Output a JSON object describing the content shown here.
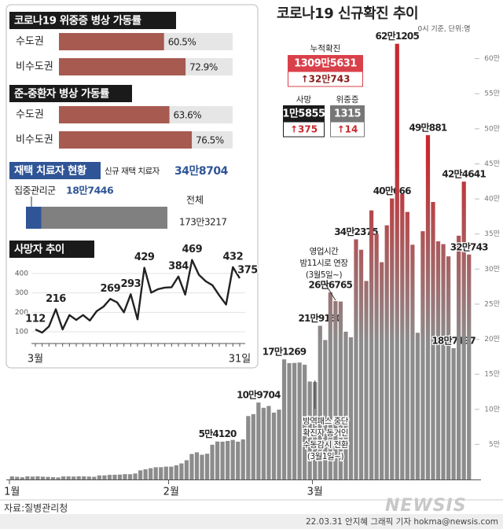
{
  "chart_data": [
    {
      "type": "bar",
      "title": "코로나19 신규확진 추이",
      "subtitle": "0시 기준, 단위:명",
      "categories": [
        "1월",
        null,
        null,
        null,
        null,
        null,
        null,
        null,
        null,
        null,
        null,
        null,
        null,
        null,
        null,
        null,
        null,
        null,
        null,
        null,
        null,
        null,
        null,
        null,
        null,
        null,
        null,
        null,
        null,
        null,
        null,
        "2월",
        null,
        null,
        null,
        null,
        null,
        null,
        null,
        null,
        null,
        null,
        null,
        null,
        null,
        null,
        null,
        null,
        null,
        null,
        null,
        null,
        null,
        null,
        null,
        null,
        null,
        null,
        null,
        "3월",
        null,
        null,
        null,
        null,
        null,
        null,
        null,
        null,
        null,
        null,
        null,
        null,
        null,
        null,
        null,
        null,
        null,
        null,
        null,
        null,
        null,
        null,
        null,
        null,
        null,
        null,
        null,
        null,
        null,
        null
      ],
      "values": [
        4415,
        3833,
        3126,
        4443,
        4126,
        4444,
        4054,
        3717,
        3373,
        3005,
        4385,
        4387,
        4167,
        4539,
        4419,
        4193,
        3857,
        5804,
        5805,
        6603,
        6769,
        7009,
        7630,
        7513,
        8571,
        13012,
        14518,
        16096,
        17513,
        17532,
        18340,
        18342,
        20270,
        22907,
        27443,
        36362,
        38691,
        35286,
        36717,
        49567,
        54120,
        53926,
        54941,
        56431,
        53926,
        57177,
        90443,
        93135,
        109704,
        102211,
        104829,
        95362,
        99573,
        171269,
        165889,
        166209,
        166722,
        163566,
        139626,
        138993,
        219160,
        198803,
        266765,
        254327,
        253698,
        210716,
        202721,
        342375,
        327549,
        282987,
        383665,
        350190,
        309790,
        362338,
        400666,
        621205,
        407017,
        381454,
        334708,
        209169,
        353980,
        490881,
        395598,
        339514,
        335580,
        318130,
        187197,
        347554,
        424641,
        320743
      ],
      "value_labels": [
        null,
        null,
        null,
        null,
        null,
        null,
        null,
        null,
        null,
        null,
        null,
        null,
        null,
        null,
        null,
        null,
        null,
        null,
        null,
        null,
        null,
        null,
        null,
        null,
        null,
        null,
        null,
        null,
        null,
        null,
        null,
        null,
        null,
        null,
        null,
        null,
        null,
        null,
        null,
        null,
        "5만4120",
        null,
        null,
        null,
        null,
        null,
        null,
        null,
        "10만9704",
        null,
        null,
        null,
        null,
        "17만1269",
        null,
        null,
        null,
        null,
        null,
        null,
        "21만9160",
        null,
        "26만6765",
        null,
        null,
        null,
        null,
        "34만2375",
        null,
        null,
        null,
        null,
        null,
        null,
        "40만666",
        "62만1205",
        null,
        null,
        null,
        null,
        null,
        "49만881",
        null,
        null,
        null,
        null,
        "18만7197",
        null,
        "42만4641",
        "32만743"
      ],
      "color": "#c8282d",
      "base_color": "#8c8c8c",
      "ylim": [
        0,
        650000
      ],
      "yticks": [
        {
          "value": 50000,
          "label": "5만"
        },
        {
          "value": 100000,
          "label": "10만"
        },
        {
          "value": 150000,
          "label": "15만"
        },
        {
          "value": 200000,
          "label": "20만"
        },
        {
          "value": 250000,
          "label": "25만"
        },
        {
          "value": 300000,
          "label": "30만"
        },
        {
          "value": 350000,
          "label": "35만"
        },
        {
          "value": 400000,
          "label": "40만"
        },
        {
          "value": 450000,
          "label": "45만"
        },
        {
          "value": 500000,
          "label": "50만"
        },
        {
          "value": 550000,
          "label": "55만"
        },
        {
          "value": 600000,
          "label": "60만"
        }
      ],
      "annotations": [
        {
          "lines": [
            "영업시간",
            "밤11시로 연장",
            "(3월5일~)"
          ]
        },
        {
          "lines": [
            "방역패스 중단",
            "확진자 동거인",
            "수동감시 전환",
            "(3월1일~)"
          ]
        }
      ]
    },
    {
      "type": "hbar",
      "title": "코로나19 위중증 병상 가동률",
      "categories": [
        "수도권",
        "비수도권"
      ],
      "values": [
        60.5,
        72.9
      ],
      "value_labels": [
        "60.5%",
        "72.9%"
      ],
      "xlim": [
        0,
        100
      ],
      "color": "#a65a50"
    },
    {
      "type": "hbar",
      "title": "준-중환자 병상 가동률",
      "categories": [
        "수도권",
        "비수도권"
      ],
      "values": [
        63.6,
        76.5
      ],
      "value_labels": [
        "63.6%",
        "76.5%"
      ],
      "xlim": [
        0,
        100
      ],
      "color": "#a65a50"
    },
    {
      "type": "line",
      "title": "사망자 추이",
      "categories": [
        "3월",
        null,
        null,
        null,
        null,
        null,
        null,
        null,
        null,
        null,
        null,
        null,
        null,
        null,
        null,
        null,
        null,
        null,
        null,
        null,
        null,
        null,
        null,
        null,
        null,
        null,
        null,
        null,
        null,
        null,
        "31일"
      ],
      "values": [
        112,
        96,
        128,
        216,
        112,
        186,
        161,
        186,
        158,
        206,
        229,
        269,
        251,
        200,
        293,
        164,
        429,
        301,
        319,
        327,
        329,
        384,
        291,
        469,
        393,
        360,
        339,
        287,
        240,
        432,
        375
      ],
      "value_labels": [
        112,
        null,
        null,
        216,
        null,
        null,
        null,
        null,
        null,
        null,
        null,
        269,
        null,
        null,
        293,
        null,
        429,
        null,
        null,
        null,
        null,
        384,
        null,
        469,
        null,
        null,
        null,
        null,
        null,
        432,
        375
      ],
      "ylim": [
        40,
        480
      ],
      "yticks": [
        100,
        200,
        300,
        400
      ],
      "color": "#222222"
    }
  ],
  "home_care": {
    "title": "재택 치료자 현황",
    "new_label": "신규 재택 치료자",
    "new_value": "34만8704",
    "intensive_label": "집중관리군",
    "intensive_value": 187446,
    "intensive_value_label": "18만7446",
    "total_label": "전체",
    "total_value": 1733217,
    "total_value_label": "173만3217"
  },
  "summary": {
    "cumulative": {
      "label": "누적확진",
      "value": "1309만5631",
      "change": "↑32만743"
    },
    "deaths": {
      "label": "사망",
      "value": "1만5855",
      "change": "↑375"
    },
    "critical": {
      "label": "위중증",
      "value": "1315",
      "change": "↑14"
    }
  },
  "source": "자료:질병관리청",
  "watermark": "NEWSIS",
  "credit": "22.03.31 안지혜 그래픽 기자 hokma@newsis.com"
}
